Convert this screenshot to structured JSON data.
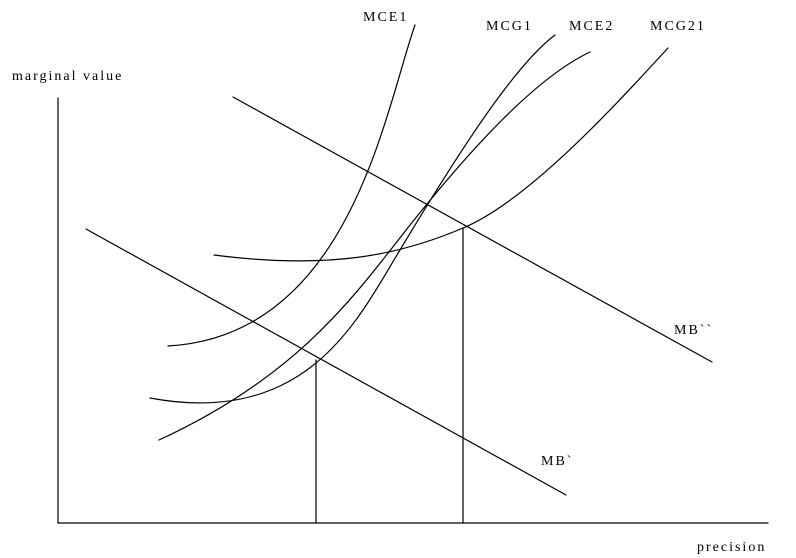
{
  "axes": {
    "y_label": "marginal value",
    "x_label": "precision"
  },
  "curves": {
    "mce1": "MCE1",
    "mcg1": "MCG1",
    "mce2": "MCE2",
    "mcg21": "MCG21"
  },
  "benefit_lines": {
    "mb_high": "MB``",
    "mb_low": "MB`"
  }
}
